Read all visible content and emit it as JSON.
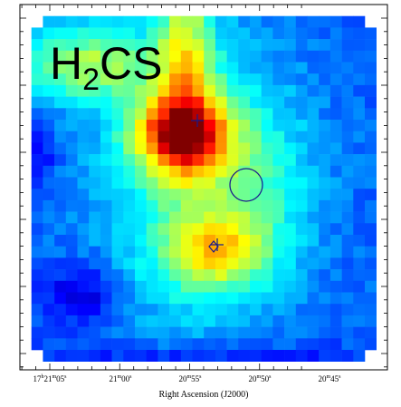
{
  "title": {
    "parts": [
      "H",
      "2",
      "CS"
    ]
  },
  "x_axis": {
    "label": "Right Ascension (J2000)",
    "ticks": [
      {
        "parts": [
          "17",
          "h",
          "21",
          "m",
          "05",
          "s"
        ]
      },
      {
        "parts": [
          "21",
          "m",
          "00",
          "s"
        ]
      },
      {
        "parts": [
          "20",
          "m",
          "55",
          "s"
        ]
      },
      {
        "parts": [
          "20",
          "m",
          "50",
          "s"
        ]
      },
      {
        "parts": [
          "20",
          "m",
          "45",
          "s"
        ]
      }
    ]
  }
}
